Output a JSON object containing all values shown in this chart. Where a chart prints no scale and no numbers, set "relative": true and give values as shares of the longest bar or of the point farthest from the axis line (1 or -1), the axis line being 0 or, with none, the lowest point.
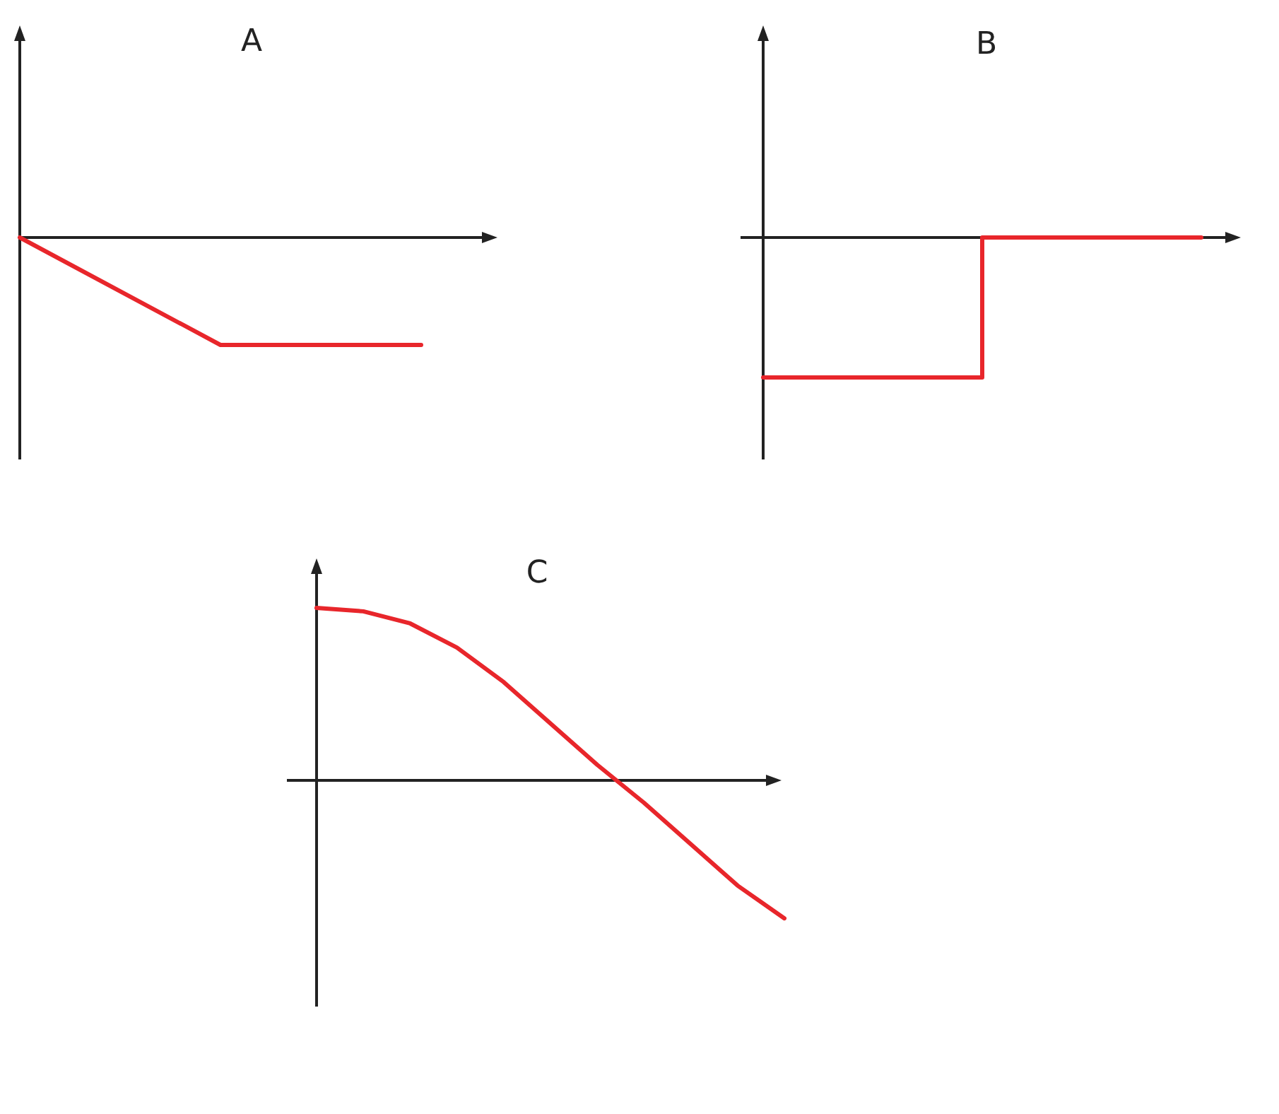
{
  "chart_data": [
    {
      "type": "line",
      "title": "A",
      "relative": true,
      "categories": [
        null,
        null,
        null
      ],
      "series": [
        {
          "color": "#e8262b",
          "values": [
            0,
            -1,
            -1
          ]
        }
      ]
    },
    {
      "type": "step",
      "title": "B",
      "relative": true,
      "categories": [
        null,
        null,
        null
      ],
      "series": [
        {
          "color": "#e8262b",
          "values": [
            -1,
            0,
            0
          ]
        }
      ]
    },
    {
      "type": "line",
      "title": "C",
      "relative": true,
      "categories": [
        null,
        null,
        null,
        null,
        null,
        null,
        null,
        null,
        null,
        null,
        null
      ],
      "series": [
        {
          "color": "#e8262b",
          "values": [
            1,
            0.98,
            0.91,
            0.77,
            0.57,
            0.33,
            0.09,
            -0.13,
            -0.37,
            -0.61,
            -0.8
          ]
        }
      ]
    }
  ]
}
